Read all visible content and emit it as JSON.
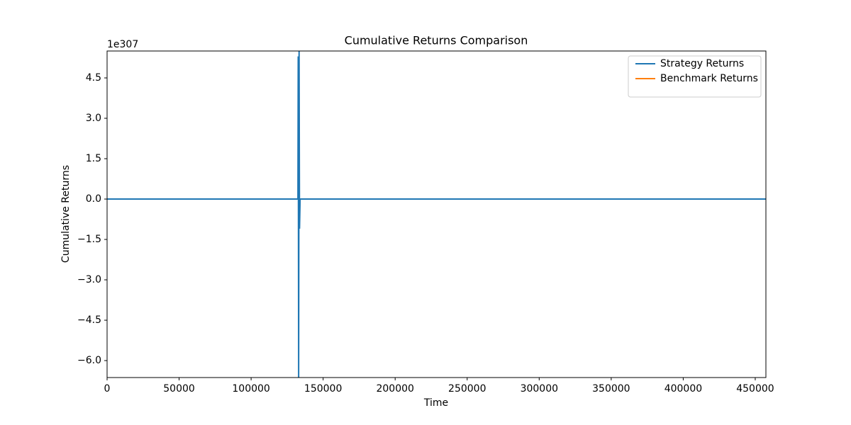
{
  "chart_data": {
    "type": "line",
    "title": "Cumulative Returns Comparison",
    "xlabel": "Time",
    "ylabel": "Cumulative Returns",
    "y_offset_label": "1e307",
    "x": [
      0,
      132500,
      132700,
      133000,
      133300,
      133600,
      134000,
      457400
    ],
    "series": [
      {
        "name": "Strategy Returns",
        "color": "#1f77b4",
        "values": [
          0,
          0,
          5.3,
          -6.63,
          5.5,
          -1.1,
          0,
          0
        ]
      },
      {
        "name": "Benchmark Returns",
        "color": "#ff7f0e",
        "values": [
          null,
          null,
          null,
          null,
          null,
          null,
          null,
          null
        ]
      }
    ],
    "xlim": [
      0,
      457400
    ],
    "ylim": [
      -6.63,
      5.5
    ],
    "xticks": [
      0,
      50000,
      100000,
      150000,
      200000,
      250000,
      300000,
      350000,
      400000,
      450000
    ],
    "yticks": [
      {
        "value": -6,
        "label": "−6.0"
      },
      {
        "value": -4.5,
        "label": "−4.5"
      },
      {
        "value": -3,
        "label": "−3.0"
      },
      {
        "value": -1.5,
        "label": "−1.5"
      },
      {
        "value": 0,
        "label": "0.0"
      },
      {
        "value": 1.5,
        "label": "1.5"
      },
      {
        "value": 3,
        "label": "3.0"
      },
      {
        "value": 4.5,
        "label": "4.5"
      }
    ],
    "grid": false,
    "legend": "upper right"
  }
}
